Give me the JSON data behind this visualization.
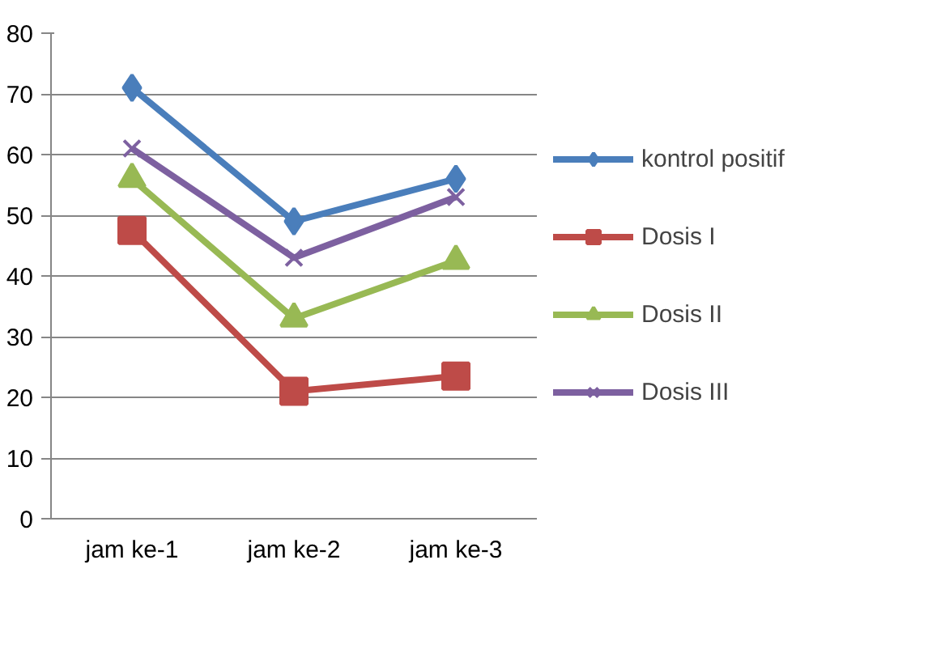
{
  "chart_data": {
    "type": "line",
    "categories": [
      "jam ke-1",
      "jam ke-2",
      "jam ke-3"
    ],
    "series": [
      {
        "name": "kontrol positif",
        "color": "#4a7ebb",
        "marker": "diamond",
        "values": [
          71,
          49,
          56
        ]
      },
      {
        "name": "Dosis I",
        "color": "#be4b48",
        "marker": "square",
        "values": [
          47.5,
          21,
          23.5
        ]
      },
      {
        "name": "Dosis II",
        "color": "#98b954",
        "marker": "triangle",
        "values": [
          56,
          33,
          42.5
        ]
      },
      {
        "name": "Dosis III",
        "color": "#7d60a0",
        "marker": "cross",
        "values": [
          61,
          43,
          53
        ]
      }
    ],
    "ylim": [
      0,
      80
    ],
    "yticks": [
      0,
      10,
      20,
      30,
      40,
      50,
      60,
      70,
      80
    ],
    "grid": "y",
    "legend": "right",
    "line_style": "solid"
  }
}
